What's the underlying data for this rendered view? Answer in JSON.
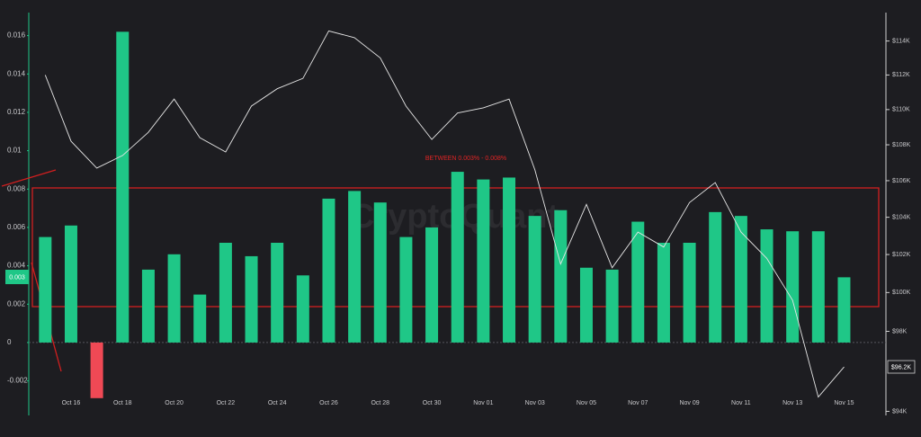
{
  "chart_data": {
    "type": "bar",
    "watermark": "CryptoQuant",
    "annotation": "BETWEEN 0.003% - 0.008%",
    "axis_tag": "0.003",
    "price_tag": "$96.2K",
    "categories": [
      null,
      "Oct 16",
      null,
      "Oct 18",
      null,
      "Oct 20",
      null,
      "Oct 22",
      null,
      "Oct 24",
      null,
      "Oct 26",
      null,
      "Oct 28",
      null,
      "Oct 30",
      null,
      "Nov 01",
      null,
      "Nov 03",
      null,
      "Nov 05",
      null,
      "Nov 07",
      null,
      "Nov 09",
      null,
      "Nov 11",
      null,
      "Nov 13",
      null,
      "Nov 15"
    ],
    "series": [
      {
        "type": "bar",
        "color": "#1fc787",
        "negative_color": "#f04955",
        "values": [
          0.0055,
          0.0061,
          -0.0029,
          0.0162,
          0.0038,
          0.0046,
          0.0025,
          0.0052,
          0.0045,
          0.0052,
          0.0035,
          0.0075,
          0.0079,
          0.0073,
          0.0055,
          0.006,
          0.0089,
          0.0085,
          0.0086,
          0.0066,
          0.0069,
          0.0039,
          0.0038,
          0.0063,
          0.0052,
          0.0052,
          0.0068,
          0.0066,
          0.0059,
          0.0058,
          0.0058,
          0.0034
        ]
      },
      {
        "type": "line",
        "axis": "y2",
        "color": "#e6e6e6",
        "values": [
          112000,
          108200,
          106700,
          107400,
          108700,
          110600,
          108400,
          107600,
          110200,
          111200,
          111800,
          114600,
          114200,
          113000,
          110200,
          108300,
          109800,
          110100,
          110600,
          106600,
          101500,
          104700,
          101300,
          103200,
          102400,
          104800,
          105900,
          103200,
          101800,
          99600,
          94700,
          96200
        ]
      }
    ],
    "ylim": [
      -0.0038,
      0.0172
    ],
    "yticks": [
      -0.002,
      0,
      0.002,
      0.004,
      0.006,
      0.008,
      0.01,
      0.012,
      0.014,
      0.016
    ],
    "y2lim": [
      93800,
      115700
    ],
    "y2log": true,
    "y2ticks": [
      {
        "value": 94000,
        "label": "$94K"
      },
      {
        "value": 98000,
        "label": "$98K"
      },
      {
        "value": 100000,
        "label": "$100K"
      },
      {
        "value": 102000,
        "label": "$102K"
      },
      {
        "value": 104000,
        "label": "$104K"
      },
      {
        "value": 106000,
        "label": "$106K"
      },
      {
        "value": 108000,
        "label": "$108K"
      },
      {
        "value": 110000,
        "label": "$110K"
      },
      {
        "value": 112000,
        "label": "$112K"
      },
      {
        "value": 114000,
        "label": "$114K"
      }
    ],
    "grid": false
  }
}
